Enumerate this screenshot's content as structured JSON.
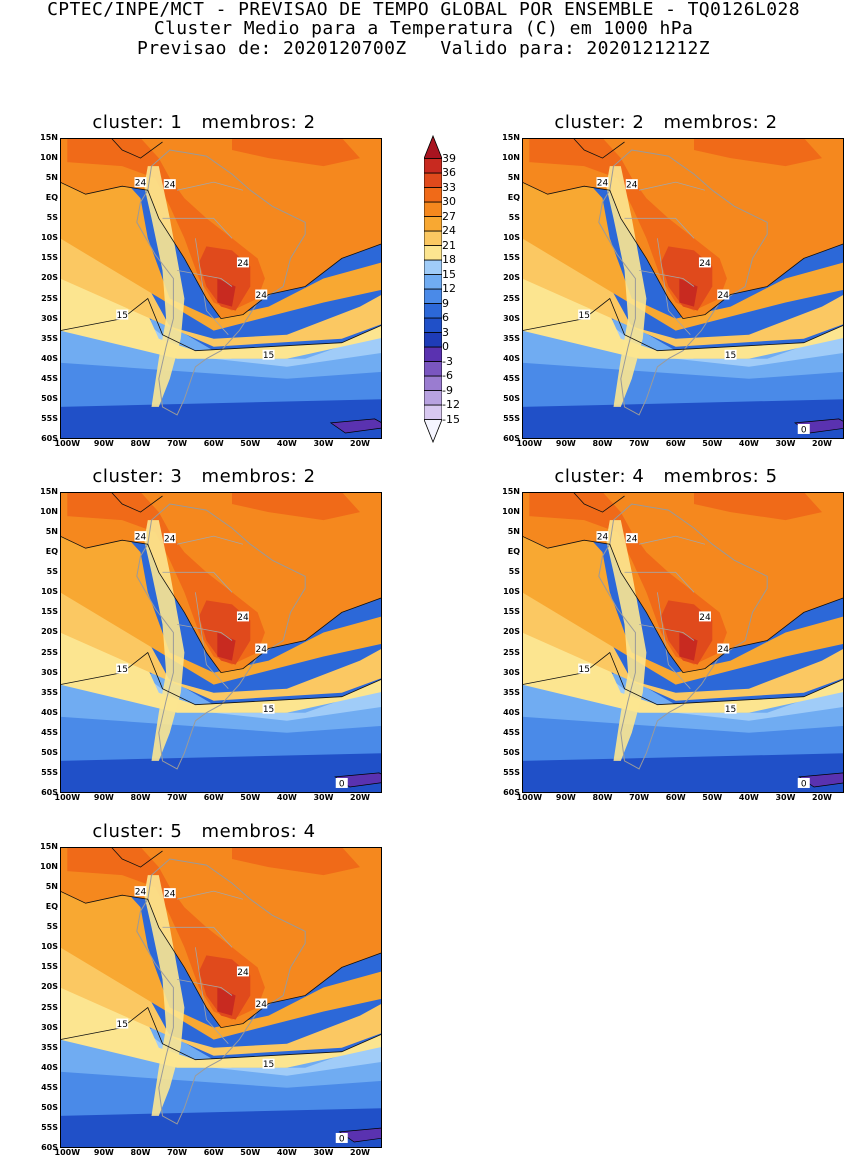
{
  "header": {
    "line1": "CPTEC/INPE/MCT - PREVISAO DE TEMPO GLOBAL POR ENSEMBLE - TQ0126L028",
    "line2": "Cluster Medio para a Temperatura (C) em 1000 hPa",
    "line3": "Previsao de: 2020120700Z   Valido para: 2020121212Z"
  },
  "panels": [
    {
      "title": "cluster: 1   membros: 2",
      "contour_labels": [
        "24",
        "24",
        "24",
        "24",
        "15",
        "15"
      ]
    },
    {
      "title": "cluster: 2   membros: 2",
      "contour_labels": [
        "24",
        "24",
        "24",
        "24",
        "15",
        "15",
        "0"
      ]
    },
    {
      "title": "cluster: 3   membros: 2",
      "contour_labels": [
        "24",
        "24",
        "24",
        "24",
        "15",
        "15",
        "0"
      ]
    },
    {
      "title": "cluster: 4   membros: 5",
      "contour_labels": [
        "24",
        "24",
        "24",
        "24",
        "15",
        "15",
        "0"
      ]
    },
    {
      "title": "cluster: 5   membros: 4",
      "contour_labels": [
        "24",
        "24",
        "24",
        "24",
        "15",
        "15",
        "0"
      ]
    }
  ],
  "axes": {
    "lat_labels": [
      "15N",
      "10N",
      "5N",
      "EQ",
      "5S",
      "10S",
      "15S",
      "20S",
      "25S",
      "30S",
      "35S",
      "40S",
      "45S",
      "50S",
      "55S",
      "60S"
    ],
    "lon_labels": [
      "100W",
      "90W",
      "80W",
      "70W",
      "60W",
      "50W",
      "40W",
      "30W",
      "20W"
    ]
  },
  "colorbar": {
    "labels": [
      "39",
      "36",
      "33",
      "30",
      "27",
      "24",
      "21",
      "18",
      "15",
      "12",
      "9",
      "6",
      "3",
      "0",
      "-3",
      "-6",
      "-9",
      "-12",
      "-15"
    ],
    "colors": [
      "#f5f5ff",
      "#d8c8f0",
      "#b8a2e0",
      "#9a7cd0",
      "#7a56c0",
      "#5a32b0",
      "#1e3cb8",
      "#2050c8",
      "#2c68d8",
      "#4a8ae8",
      "#70acf2",
      "#a0ccf8",
      "#fce590",
      "#fbc862",
      "#f8a832",
      "#f5881e",
      "#f06a18",
      "#e04a1c",
      "#c82a20",
      "#a81420"
    ]
  }
}
